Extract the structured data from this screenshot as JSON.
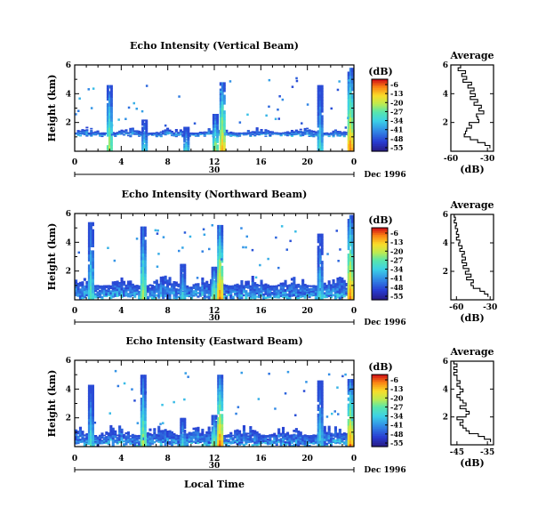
{
  "chart_data": [
    {
      "type": "heatmap",
      "title": "Echo Intensity (Vertical Beam)",
      "ylabel": "Height (km)",
      "yticks": [
        "6",
        "4",
        "2"
      ],
      "xticks": [
        "0",
        "4",
        "8",
        "12",
        "16",
        "20",
        "0"
      ],
      "date_day": "30",
      "date_label": "Dec 1996",
      "xlim": [
        0,
        24
      ],
      "ylim": [
        0,
        6
      ],
      "colorbar_label": "(dB)",
      "colorbar_ticks": [
        "-6",
        "-13",
        "-20",
        "-27",
        "-34",
        "-41",
        "-48",
        "-55"
      ],
      "colorbar_range": [
        -58,
        -2
      ],
      "cloud_base_km": [
        1.0,
        1.2
      ],
      "cloud_top_km": [
        1.3,
        1.7
      ],
      "convective_columns": [
        {
          "t": 2.9,
          "top": 4.6,
          "peak_db": -20
        },
        {
          "t": 5.9,
          "top": 2.2,
          "peak_db": -30
        },
        {
          "t": 9.5,
          "top": 1.7,
          "peak_db": -30
        },
        {
          "t": 12.0,
          "top": 2.6,
          "peak_db": -20
        },
        {
          "t": 12.6,
          "top": 4.8,
          "peak_db": -10
        },
        {
          "t": 21.0,
          "top": 4.6,
          "peak_db": -30
        },
        {
          "t": 23.6,
          "top": 5.8,
          "peak_db": -6
        }
      ],
      "profile": {
        "title": "Average",
        "xlabel": "(dB)",
        "xticks": [
          "-60",
          "-30"
        ],
        "xlim": [
          -60,
          -25
        ],
        "yticks": [
          "6",
          "4",
          "2"
        ],
        "heights_km": [
          0.3,
          0.5,
          0.7,
          0.9,
          1.1,
          1.3,
          1.5,
          1.7,
          1.9,
          2.1,
          2.3,
          2.5,
          2.7,
          2.9,
          3.1,
          3.3,
          3.5,
          3.7,
          3.9,
          4.1,
          4.3,
          4.5,
          4.7,
          4.9,
          5.1,
          5.3,
          5.5,
          5.7,
          5.9
        ],
        "values_db": [
          -28,
          -32,
          -38,
          -44,
          -49,
          -48,
          -47,
          -43,
          -45,
          -37,
          -38,
          -39,
          -33,
          -37,
          -35,
          -41,
          -38,
          -44,
          -40,
          -44,
          -41,
          -46,
          -43,
          -50,
          -47,
          -51,
          -48,
          -54,
          -52
        ]
      }
    },
    {
      "type": "heatmap",
      "title": "Echo Intensity (Northward Beam)",
      "ylabel": "Height (km)",
      "yticks": [
        "6",
        "4",
        "2"
      ],
      "xticks": [
        "0",
        "4",
        "8",
        "12",
        "16",
        "20",
        "0"
      ],
      "date_day": "30",
      "date_label": "Dec 1996",
      "xlim": [
        0,
        24
      ],
      "ylim": [
        0,
        6
      ],
      "colorbar_label": "(dB)",
      "colorbar_ticks": [
        "-6",
        "-13",
        "-20",
        "-27",
        "-34",
        "-41",
        "-48",
        "-55"
      ],
      "colorbar_range": [
        -58,
        -2
      ],
      "cloud_base_km": [
        0,
        0.3
      ],
      "cloud_top_km": [
        1.0,
        1.7
      ],
      "convective_columns": [
        {
          "t": 1.3,
          "top": 5.4,
          "peak_db": -27
        },
        {
          "t": 5.8,
          "top": 5.1,
          "peak_db": -20
        },
        {
          "t": 9.2,
          "top": 2.5,
          "peak_db": -30
        },
        {
          "t": 11.9,
          "top": 2.3,
          "peak_db": -20
        },
        {
          "t": 12.4,
          "top": 5.2,
          "peak_db": -6
        },
        {
          "t": 21.0,
          "top": 4.6,
          "peak_db": -30
        },
        {
          "t": 23.6,
          "top": 5.9,
          "peak_db": -6
        }
      ],
      "profile": {
        "title": "Average",
        "xlabel": "(dB)",
        "xticks": [
          "-60",
          "-30"
        ],
        "xlim": [
          -65,
          -27
        ],
        "yticks": [
          "6",
          "4",
          "2"
        ],
        "heights_km": [
          0.3,
          0.5,
          0.7,
          0.9,
          1.1,
          1.3,
          1.5,
          1.7,
          1.9,
          2.1,
          2.3,
          2.5,
          2.7,
          2.9,
          3.1,
          3.3,
          3.5,
          3.7,
          3.9,
          4.1,
          4.3,
          4.5,
          4.7,
          4.9,
          5.1,
          5.3,
          5.5,
          5.7,
          5.9
        ],
        "values_db": [
          -32,
          -35,
          -39,
          -45,
          -47,
          -45,
          -51,
          -47,
          -52,
          -49,
          -54,
          -51,
          -55,
          -52,
          -55,
          -53,
          -57,
          -55,
          -58,
          -57,
          -60,
          -58,
          -60,
          -59,
          -61,
          -60,
          -62,
          -61,
          -62
        ]
      }
    },
    {
      "type": "heatmap",
      "title": "Echo Intensity (Eastward Beam)",
      "ylabel": "Height (km)",
      "yticks": [
        "6",
        "4",
        "2"
      ],
      "xticks": [
        "0",
        "4",
        "8",
        "12",
        "16",
        "20",
        "0"
      ],
      "date_day": "30",
      "date_label": "Dec 1996",
      "xlabel": "Local Time",
      "xlim": [
        0,
        24
      ],
      "ylim": [
        0,
        6
      ],
      "colorbar_label": "(dB)",
      "colorbar_ticks": [
        "-6",
        "-13",
        "-20",
        "-27",
        "-34",
        "-41",
        "-48",
        "-55"
      ],
      "colorbar_range": [
        -58,
        -2
      ],
      "cloud_base_km": [
        0,
        0.3
      ],
      "cloud_top_km": [
        0.8,
        1.6
      ],
      "convective_columns": [
        {
          "t": 1.3,
          "top": 4.3,
          "peak_db": -30
        },
        {
          "t": 5.8,
          "top": 5.0,
          "peak_db": -20
        },
        {
          "t": 9.2,
          "top": 2.0,
          "peak_db": -30
        },
        {
          "t": 11.9,
          "top": 2.2,
          "peak_db": -20
        },
        {
          "t": 12.4,
          "top": 5.0,
          "peak_db": -6
        },
        {
          "t": 21.0,
          "top": 4.6,
          "peak_db": -30
        },
        {
          "t": 23.6,
          "top": 4.7,
          "peak_db": -6
        }
      ],
      "profile": {
        "title": "Average",
        "xlabel": "(dB)",
        "xticks": [
          "-45",
          "-35"
        ],
        "xlim": [
          -47,
          -33
        ],
        "yticks": [
          "6",
          "4",
          "2"
        ],
        "heights_km": [
          0.3,
          0.5,
          0.7,
          0.9,
          1.1,
          1.3,
          1.5,
          1.7,
          1.9,
          2.1,
          2.3,
          2.5,
          2.7,
          2.9,
          3.1,
          3.3,
          3.5,
          3.7,
          3.9,
          4.1,
          4.3,
          4.5,
          4.7,
          4.9,
          5.1,
          5.3,
          5.5,
          5.7,
          5.9
        ],
        "values_db": [
          -34,
          -36,
          -38,
          -41,
          -42,
          -43,
          -44,
          -43,
          -45,
          -42,
          -41,
          -42,
          -44,
          -42,
          -43,
          -44,
          -45,
          -44,
          -43,
          -44,
          -45,
          -44,
          -45,
          -45,
          -46,
          -45,
          -46,
          -45,
          -46
        ]
      }
    }
  ]
}
